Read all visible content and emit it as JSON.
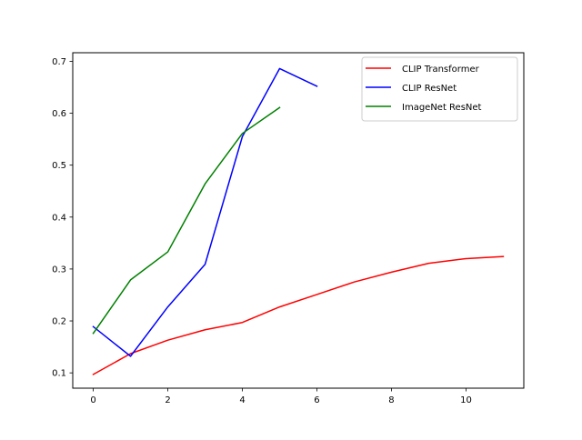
{
  "chart_data": {
    "type": "line",
    "title": "",
    "xlabel": "",
    "ylabel": "",
    "xlim": [
      -0.55,
      11.55
    ],
    "ylim": [
      0.0705,
      0.7165
    ],
    "x_ticks": [
      0,
      2,
      4,
      6,
      8,
      10
    ],
    "x_tick_labels": [
      "0",
      "2",
      "4",
      "6",
      "8",
      "10"
    ],
    "y_ticks": [
      0.1,
      0.2,
      0.3,
      0.4,
      0.5,
      0.6,
      0.7
    ],
    "y_tick_labels": [
      "0.1",
      "0.2",
      "0.3",
      "0.4",
      "0.5",
      "0.6",
      "0.7"
    ],
    "grid": false,
    "legend_position": "top-right",
    "series": [
      {
        "name": "CLIP Transformer",
        "color": "#ff0000",
        "x": [
          0,
          1,
          2,
          3,
          4,
          5,
          6,
          7,
          8,
          9,
          10,
          11
        ],
        "y": [
          0.097,
          0.137,
          0.163,
          0.183,
          0.197,
          0.227,
          0.251,
          0.275,
          0.294,
          0.311,
          0.32,
          0.324
        ]
      },
      {
        "name": "CLIP ResNet",
        "color": "#0000ff",
        "x": [
          0,
          1,
          2,
          3,
          4,
          5,
          6
        ],
        "y": [
          0.189,
          0.132,
          0.227,
          0.309,
          0.555,
          0.686,
          0.652
        ]
      },
      {
        "name": "ImageNet ResNet",
        "color": "#008000",
        "x": [
          0,
          1,
          2,
          3,
          4,
          5
        ],
        "y": [
          0.176,
          0.279,
          0.333,
          0.464,
          0.561,
          0.611
        ]
      }
    ]
  }
}
